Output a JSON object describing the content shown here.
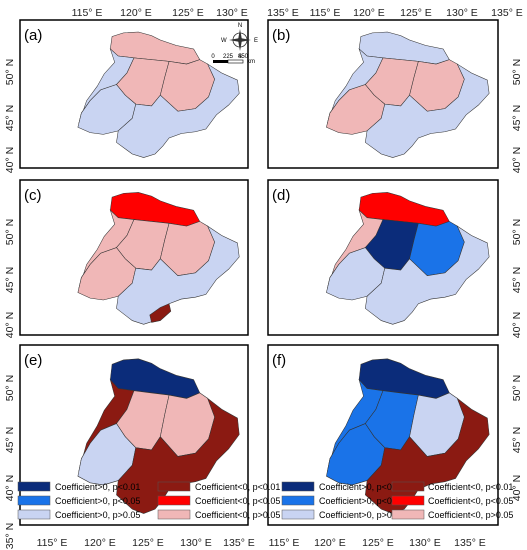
{
  "lon_labels": [
    "115° E",
    "120° E",
    "125° E",
    "130° E",
    "135° E"
  ],
  "lat_labels": [
    "50° N",
    "45° N",
    "40° N"
  ],
  "bottom_lat_label": "35° N",
  "colors": {
    "pos_p01": "#0b2c7a",
    "pos_p05": "#1a73e8",
    "pos_gt05": "#c9d4f2",
    "neg_p01": "#8b1a12",
    "neg_p05": "#ff0000",
    "neg_gt05": "#f0b7b7"
  },
  "scale_bar": {
    "ticks": [
      "0",
      "225",
      "450"
    ],
    "unit": "km"
  },
  "compass_labels": {
    "n": "N",
    "e": "E",
    "s": "S",
    "w": "W"
  },
  "panels": [
    {
      "label": "(a)",
      "regions": [
        "neg_gt05",
        "pos_gt05",
        "neg_gt05",
        "neg_gt05",
        "pos_gt05",
        "pos_gt05"
      ]
    },
    {
      "label": "(b)",
      "regions": [
        "pos_gt05",
        "pos_gt05",
        "neg_gt05",
        "neg_gt05",
        "neg_gt05",
        "pos_gt05"
      ]
    },
    {
      "label": "(c)",
      "regions": [
        "neg_p05",
        "neg_gt05",
        "neg_gt05",
        "neg_gt05",
        "neg_gt05",
        "pos_gt05"
      ],
      "extras": [
        "neg_p01"
      ]
    },
    {
      "label": "(d)",
      "regions": [
        "neg_p05",
        "neg_gt05",
        "pos_p01",
        "pos_p05",
        "pos_gt05",
        "pos_gt05"
      ]
    },
    {
      "label": "(e)",
      "regions": [
        "pos_p01",
        "neg_p01",
        "neg_gt05",
        "neg_gt05",
        "pos_gt05",
        "neg_p01"
      ]
    },
    {
      "label": "(f)",
      "regions": [
        "pos_p01",
        "pos_p05",
        "pos_p05",
        "pos_gt05",
        "pos_p05",
        "neg_p01"
      ]
    }
  ],
  "legend": {
    "pos": [
      "Coefficient>0, p<0.01",
      "Coefficient>0, p<0.05",
      "Coefficient>0, p>0.05"
    ],
    "neg": [
      "Coefficient<0, p<0.01",
      "Coefficient<0, p<0.05",
      "Coefficient<0, p>0.05"
    ]
  }
}
